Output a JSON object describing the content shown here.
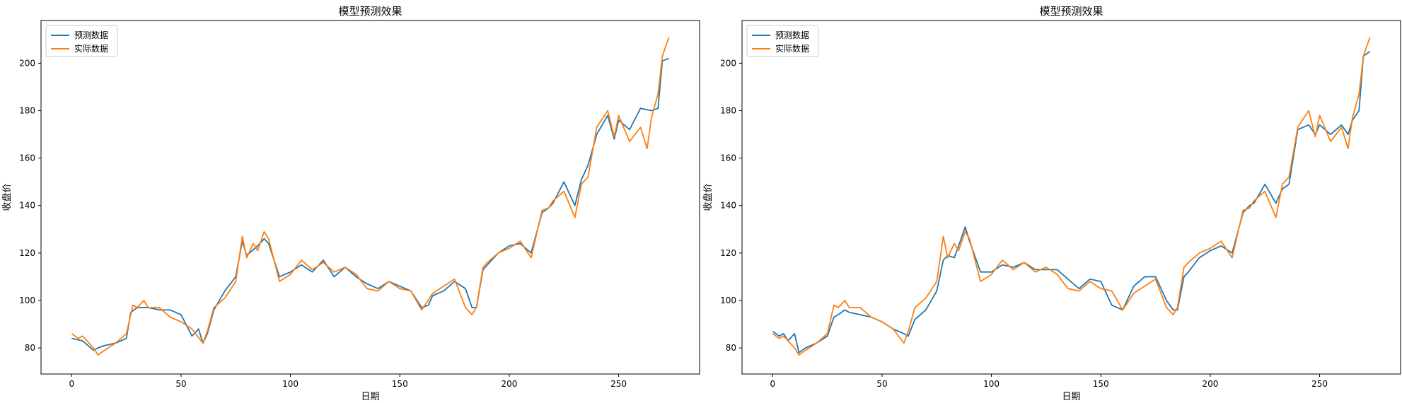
{
  "chart_data": [
    {
      "type": "line",
      "title": "模型预测效果",
      "xlabel": "日期",
      "ylabel": "收盘价",
      "xlim": [
        -14,
        287
      ],
      "ylim": [
        69,
        218
      ],
      "xticks": [
        0,
        50,
        100,
        150,
        200,
        250
      ],
      "yticks": [
        80,
        100,
        120,
        140,
        160,
        180,
        200
      ],
      "legend_position": "top-left",
      "grid": false,
      "series": [
        {
          "name": "预测数据",
          "color": "#1f77b4",
          "x": [
            0,
            5,
            10,
            12,
            15,
            20,
            25,
            27,
            30,
            35,
            40,
            45,
            50,
            55,
            58,
            60,
            62,
            65,
            70,
            75,
            78,
            80,
            85,
            88,
            90,
            95,
            100,
            105,
            110,
            115,
            120,
            125,
            130,
            135,
            140,
            145,
            150,
            155,
            160,
            163,
            165,
            170,
            175,
            180,
            183,
            185,
            188,
            190,
            195,
            200,
            205,
            210,
            215,
            218,
            220,
            225,
            230,
            233,
            236,
            240,
            245,
            248,
            250,
            255,
            260,
            265,
            268,
            270,
            273
          ],
          "y": [
            84,
            83,
            79,
            80,
            81,
            82,
            84,
            95,
            97,
            97,
            96,
            96,
            94,
            85,
            88,
            82,
            86,
            96,
            104,
            110,
            125,
            119,
            123,
            126,
            124,
            110,
            112,
            115,
            112,
            117,
            110,
            114,
            110,
            107,
            105,
            108,
            106,
            104,
            97,
            98,
            102,
            104,
            108,
            105,
            97,
            97,
            113,
            115,
            120,
            123,
            124,
            120,
            137,
            139,
            141,
            150,
            140,
            151,
            157,
            170,
            178,
            168,
            176,
            172,
            181,
            180,
            181,
            201,
            202
          ]
        },
        {
          "name": "实际数据",
          "color": "#ff7f0e",
          "x": [
            0,
            3,
            5,
            7,
            10,
            12,
            15,
            20,
            25,
            28,
            30,
            33,
            35,
            40,
            45,
            50,
            55,
            60,
            62,
            65,
            70,
            75,
            78,
            80,
            83,
            85,
            88,
            90,
            95,
            100,
            105,
            110,
            115,
            120,
            125,
            130,
            135,
            140,
            145,
            150,
            155,
            160,
            165,
            170,
            175,
            180,
            183,
            185,
            188,
            190,
            195,
            200,
            205,
            210,
            215,
            218,
            220,
            225,
            230,
            233,
            236,
            240,
            245,
            248,
            250,
            255,
            260,
            263,
            265,
            268,
            270,
            273
          ],
          "y": [
            86,
            84,
            85,
            83,
            80,
            77,
            79,
            82,
            86,
            98,
            97,
            100,
            97,
            97,
            93,
            91,
            88,
            82,
            87,
            97,
            101,
            108,
            127,
            118,
            124,
            121,
            129,
            126,
            108,
            111,
            117,
            113,
            116,
            112,
            114,
            111,
            105,
            104,
            108,
            105,
            104,
            96,
            103,
            106,
            109,
            97,
            94,
            97,
            114,
            116,
            120,
            122,
            125,
            118,
            138,
            139,
            142,
            146,
            135,
            149,
            152,
            173,
            180,
            169,
            178,
            167,
            173,
            164,
            177,
            187,
            203,
            211
          ]
        }
      ]
    },
    {
      "type": "line",
      "title": "模型预测效果",
      "xlabel": "日期",
      "ylabel": "收盘价",
      "xlim": [
        -14,
        287
      ],
      "ylim": [
        69,
        218
      ],
      "xticks": [
        0,
        50,
        100,
        150,
        200,
        250
      ],
      "yticks": [
        80,
        100,
        120,
        140,
        160,
        180,
        200
      ],
      "legend_position": "top-left",
      "grid": false,
      "series": [
        {
          "name": "预测数据",
          "color": "#1f77b4",
          "x": [
            0,
            3,
            5,
            7,
            10,
            12,
            15,
            20,
            25,
            28,
            30,
            33,
            35,
            40,
            45,
            50,
            55,
            60,
            62,
            65,
            70,
            75,
            78,
            80,
            83,
            85,
            88,
            90,
            95,
            100,
            105,
            110,
            115,
            120,
            125,
            130,
            135,
            140,
            145,
            150,
            155,
            160,
            165,
            170,
            175,
            180,
            183,
            185,
            188,
            190,
            195,
            200,
            205,
            210,
            215,
            218,
            220,
            225,
            230,
            233,
            236,
            240,
            245,
            248,
            250,
            255,
            260,
            263,
            265,
            268,
            270,
            273
          ],
          "y": [
            87,
            85,
            86,
            83,
            86,
            78,
            80,
            82,
            85,
            93,
            94,
            96,
            95,
            94,
            93,
            91,
            88,
            86,
            85,
            92,
            96,
            104,
            117,
            119,
            118,
            123,
            131,
            125,
            112,
            112,
            115,
            114,
            116,
            113,
            113,
            113,
            109,
            105,
            109,
            108,
            98,
            96,
            106,
            110,
            110,
            100,
            96,
            96,
            110,
            112,
            118,
            121,
            123,
            120,
            137,
            140,
            141,
            149,
            141,
            147,
            149,
            172,
            174,
            170,
            174,
            170,
            174,
            170,
            176,
            180,
            203,
            205
          ]
        },
        {
          "name": "实际数据",
          "color": "#ff7f0e",
          "x": [
            0,
            3,
            5,
            7,
            10,
            12,
            15,
            20,
            25,
            28,
            30,
            33,
            35,
            40,
            45,
            50,
            55,
            60,
            62,
            65,
            70,
            75,
            78,
            80,
            83,
            85,
            88,
            90,
            95,
            100,
            105,
            110,
            115,
            120,
            125,
            130,
            135,
            140,
            145,
            150,
            155,
            160,
            165,
            170,
            175,
            180,
            183,
            185,
            188,
            190,
            195,
            200,
            205,
            210,
            215,
            218,
            220,
            225,
            230,
            233,
            236,
            240,
            245,
            248,
            250,
            255,
            260,
            263,
            265,
            268,
            270,
            273
          ],
          "y": [
            86,
            84,
            85,
            83,
            80,
            77,
            79,
            82,
            86,
            98,
            97,
            100,
            97,
            97,
            93,
            91,
            88,
            82,
            87,
            97,
            101,
            108,
            127,
            118,
            124,
            121,
            129,
            126,
            108,
            111,
            117,
            113,
            116,
            112,
            114,
            111,
            105,
            104,
            108,
            105,
            104,
            96,
            103,
            106,
            109,
            97,
            94,
            97,
            114,
            116,
            120,
            122,
            125,
            118,
            138,
            139,
            142,
            146,
            135,
            149,
            152,
            173,
            180,
            169,
            178,
            167,
            173,
            164,
            177,
            187,
            203,
            211
          ]
        }
      ]
    }
  ]
}
